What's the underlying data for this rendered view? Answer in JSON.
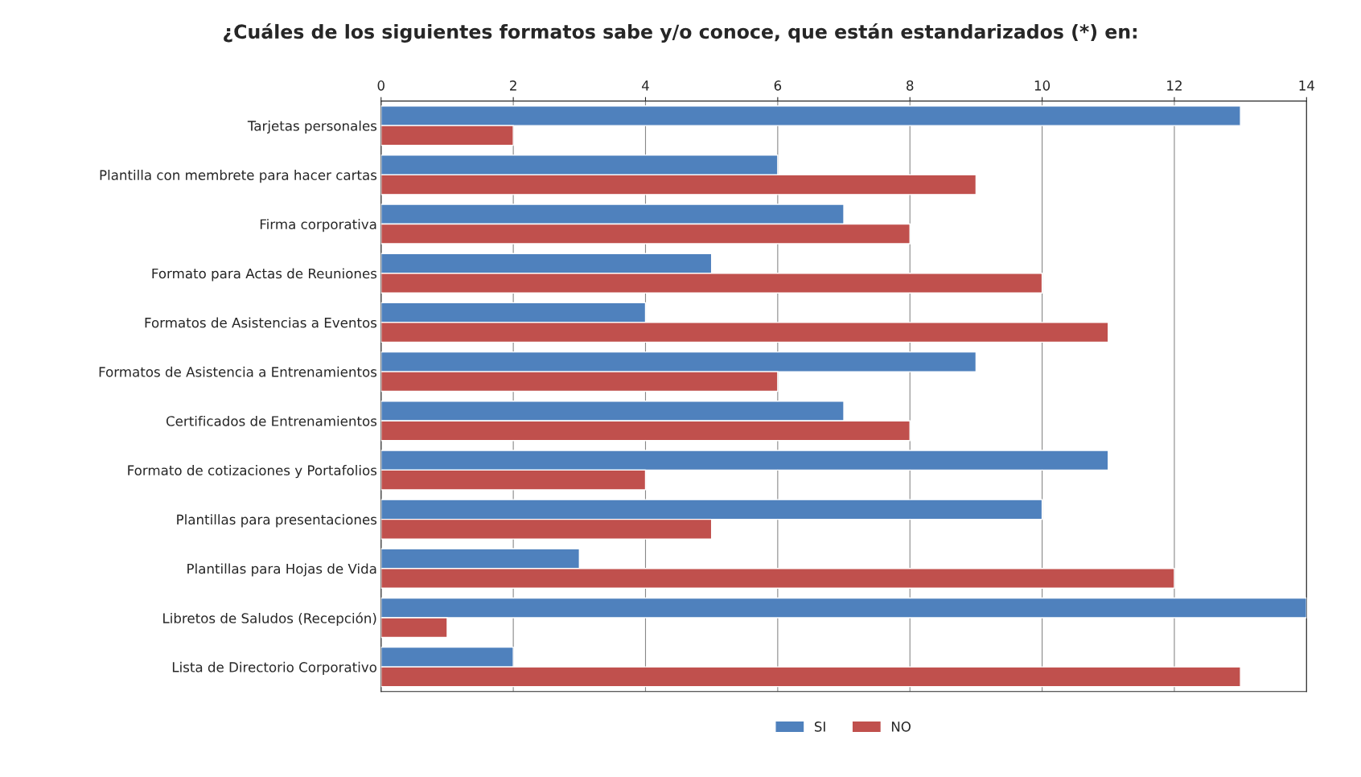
{
  "chart_data": {
    "type": "bar",
    "orientation": "horizontal",
    "title": "¿Cuáles de los siguientes formatos sabe y/o conoce, que están estandarizados (*) en:",
    "categories": [
      "Tarjetas personales",
      "Plantilla con membrete para hacer cartas",
      "Firma corporativa",
      "Formato para Actas de Reuniones",
      "Formatos de Asistencias a Eventos",
      "Formatos de Asistencia a Entrenamientos",
      "Certificados de Entrenamientos",
      "Formato de cotizaciones y Portafolios",
      "Plantillas para presentaciones",
      "Plantillas para Hojas de Vida",
      "Libretos de Saludos (Recepción)",
      "Lista de Directorio Corporativo"
    ],
    "series": [
      {
        "name": "SI",
        "color": "#4f81bd",
        "values": [
          13,
          6,
          7,
          5,
          4,
          9,
          7,
          11,
          10,
          3,
          14,
          2
        ]
      },
      {
        "name": "NO",
        "color": "#c0504d",
        "values": [
          2,
          9,
          8,
          10,
          11,
          6,
          8,
          4,
          5,
          12,
          1,
          13
        ]
      }
    ],
    "xlim": [
      0,
      14
    ],
    "xticks": [
      0,
      2,
      4,
      6,
      8,
      10,
      12,
      14
    ],
    "grid": "x",
    "legend": "bottom"
  }
}
